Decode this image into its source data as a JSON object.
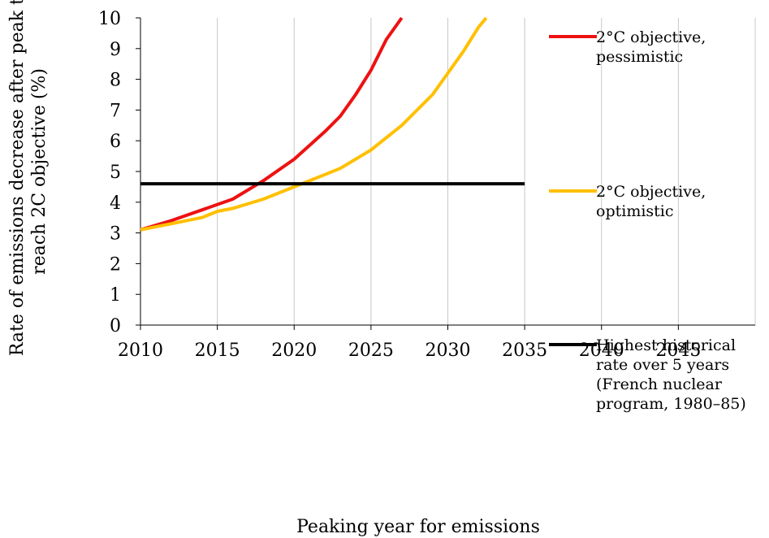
{
  "chart_data": {
    "type": "line",
    "xlabel": "Peaking year for emissions",
    "ylabel": [
      "Rate of emissions decrease after peak to",
      "reach 2C objective (%)"
    ],
    "xlim": [
      2010,
      2050
    ],
    "ylim": [
      0,
      10
    ],
    "x_ticks": [
      2010,
      2015,
      2020,
      2025,
      2030,
      2035,
      2040,
      2045
    ],
    "y_ticks": [
      0,
      1,
      2,
      3,
      4,
      5,
      6,
      7,
      8,
      9,
      10
    ],
    "grid": "vertical",
    "legend_position": "right",
    "series": [
      {
        "name": [
          "2°C objective,",
          "pessimistic"
        ],
        "color": "#ee1111",
        "points": [
          [
            2010,
            3.1
          ],
          [
            2012,
            3.4
          ],
          [
            2014,
            3.75
          ],
          [
            2016,
            4.1
          ],
          [
            2018,
            4.7
          ],
          [
            2020,
            5.4
          ],
          [
            2022,
            6.3
          ],
          [
            2023,
            6.8
          ],
          [
            2024,
            7.5
          ],
          [
            2025,
            8.3
          ],
          [
            2026,
            9.3
          ],
          [
            2027,
            10.0
          ]
        ]
      },
      {
        "name": [
          "2°C objective,",
          "optimistic"
        ],
        "color": "#ffc000",
        "points": [
          [
            2010,
            3.1
          ],
          [
            2012,
            3.3
          ],
          [
            2014,
            3.5
          ],
          [
            2015,
            3.7
          ],
          [
            2016,
            3.8
          ],
          [
            2018,
            4.1
          ],
          [
            2020,
            4.5
          ],
          [
            2022,
            4.9
          ],
          [
            2023,
            5.1
          ],
          [
            2025,
            5.7
          ],
          [
            2027,
            6.5
          ],
          [
            2029,
            7.5
          ],
          [
            2031,
            8.9
          ],
          [
            2032,
            9.7
          ],
          [
            2032.5,
            10.0
          ]
        ]
      },
      {
        "name": [
          "Highest historical",
          "rate over 5 years",
          "(French nuclear",
          "program, 1980–85)"
        ],
        "color": "#000000",
        "points": [
          [
            2010,
            4.6
          ],
          [
            2035,
            4.6
          ]
        ]
      }
    ]
  }
}
